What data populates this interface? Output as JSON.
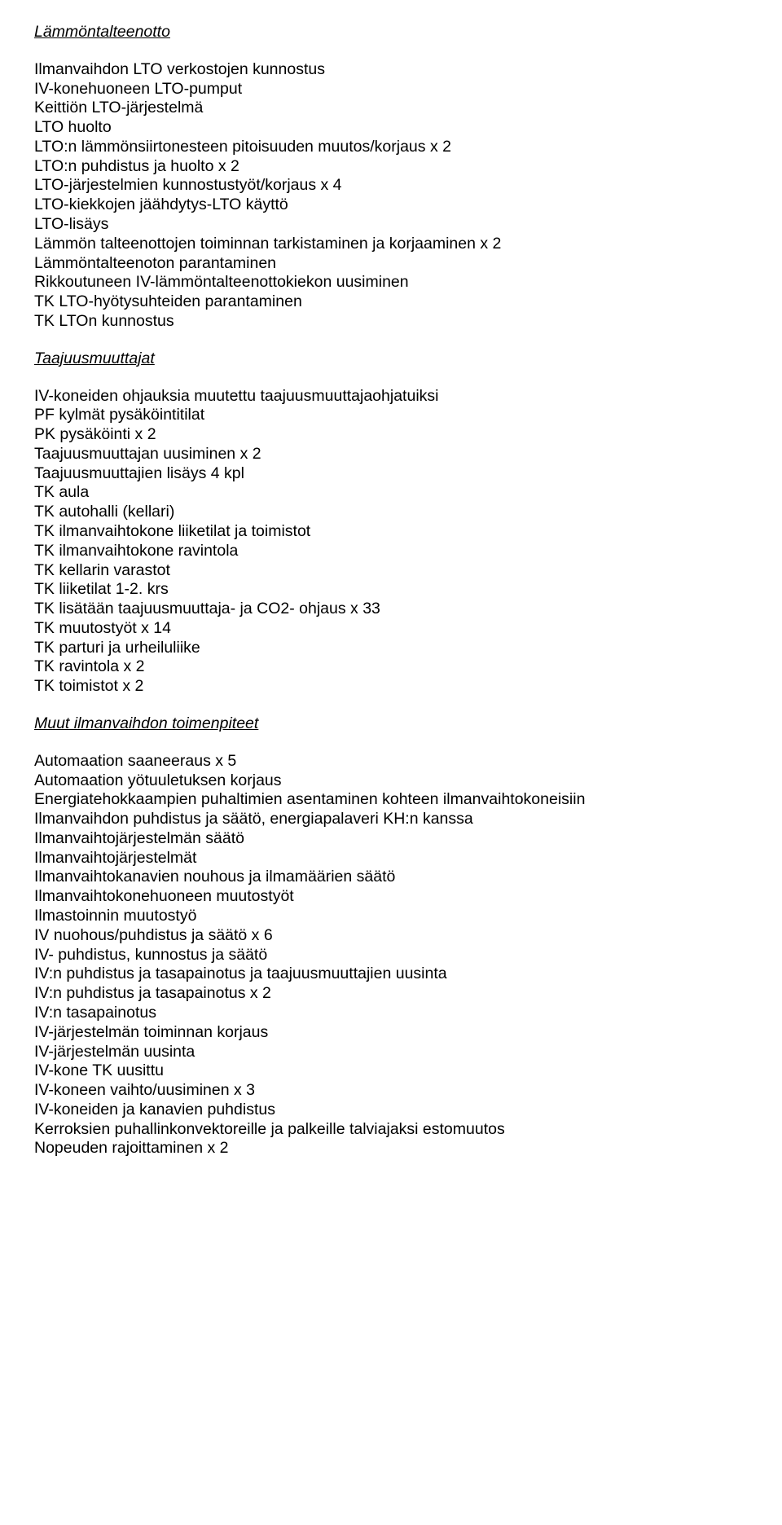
{
  "sections": [
    {
      "heading": "Lämmöntalteenotto",
      "items": [
        "Ilmanvaihdon LTO verkostojen kunnostus",
        "IV-konehuoneen LTO-pumput",
        "Keittiön LTO-järjestelmä",
        "LTO huolto",
        "LTO:n lämmönsiirtonesteen pitoisuuden muutos/korjaus x 2",
        "LTO:n puhdistus ja huolto x 2",
        "LTO-järjestelmien kunnostustyöt/korjaus x 4",
        "LTO-kiekkojen jäähdytys-LTO käyttö",
        "LTO-lisäys",
        "Lämmön talteenottojen toiminnan tarkistaminen ja korjaaminen x 2",
        "Lämmöntalteenoton parantaminen",
        "Rikkoutuneen IV-lämmöntalteenottokiekon uusiminen",
        "TK LTO-hyötysuhteiden parantaminen",
        "TK LTOn kunnostus"
      ]
    },
    {
      "heading": "Taajuusmuuttajat",
      "items": [
        "IV-koneiden ohjauksia muutettu taajuusmuuttajaohjatuiksi",
        "PF kylmät pysäköintitilat",
        "PK pysäköinti x 2",
        "Taajuusmuuttajan uusiminen x 2",
        "Taajuusmuuttajien lisäys 4 kpl",
        "TK aula",
        "TK autohalli (kellari)",
        "TK ilmanvaihtokone liiketilat ja toimistot",
        "TK ilmanvaihtokone ravintola",
        "TK kellarin varastot",
        "TK liiketilat 1-2. krs",
        "TK lisätään taajuusmuuttaja- ja CO2- ohjaus x 33",
        "TK muutostyöt x 14",
        "TK parturi ja urheiluliike",
        "TK ravintola x 2",
        "TK toimistot x 2"
      ]
    },
    {
      "heading": "Muut ilmanvaihdon toimenpiteet",
      "items": [
        "Automaation saaneeraus x 5",
        "Automaation yötuuletuksen korjaus",
        "Energiatehokkaampien puhaltimien asentaminen kohteen ilmanvaihtokoneisiin",
        "Ilmanvaihdon puhdistus ja säätö, energiapalaveri KH:n kanssa",
        "Ilmanvaihtojärjestelmän säätö",
        "Ilmanvaihtojärjestelmät",
        "Ilmanvaihtokanavien nouhous ja ilmamäärien säätö",
        "Ilmanvaihtokonehuoneen muutostyöt",
        "Ilmastoinnin muutostyö",
        "IV nuohous/puhdistus ja säätö x 6",
        "IV- puhdistus, kunnostus ja säätö",
        "IV:n puhdistus ja tasapainotus ja taajuusmuuttajien uusinta",
        "IV:n puhdistus ja tasapainotus x 2",
        "IV:n tasapainotus",
        "IV-järjestelmän toiminnan korjaus",
        "IV-järjestelmän uusinta",
        "IV-kone TK uusittu",
        "IV-koneen vaihto/uusiminen x 3",
        "IV-koneiden ja kanavien puhdistus",
        "Kerroksien puhallinkonvektoreille ja palkeille talviajaksi estomuutos",
        "Nopeuden rajoittaminen x 2"
      ]
    }
  ]
}
